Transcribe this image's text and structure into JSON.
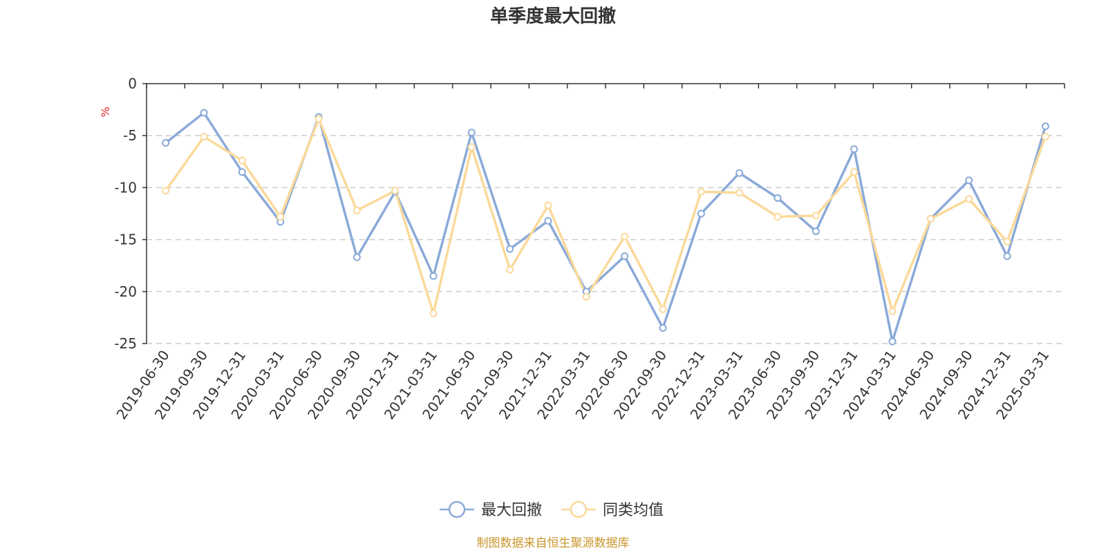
{
  "chart_data": {
    "type": "line",
    "title": "单季度最大回撤",
    "ylabel": "%",
    "ylim": [
      -25,
      0
    ],
    "yticks": [
      0,
      -5,
      -10,
      -15,
      -20,
      -25
    ],
    "grid": true,
    "legend_position": "bottom",
    "x": [
      "2019-06-30",
      "2019-09-30",
      "2019-12-31",
      "2020-03-31",
      "2020-06-30",
      "2020-09-30",
      "2020-12-31",
      "2021-03-31",
      "2021-06-30",
      "2021-09-30",
      "2021-12-31",
      "2022-03-31",
      "2022-06-30",
      "2022-09-30",
      "2022-12-31",
      "2023-03-31",
      "2023-06-30",
      "2023-09-30",
      "2023-12-31",
      "2024-03-31",
      "2024-06-30",
      "2024-09-30",
      "2024-12-31",
      "2025-03-31"
    ],
    "series": [
      {
        "name": "最大回撤",
        "color": "#8aaad8",
        "values": [
          -5.7,
          -2.8,
          -8.5,
          -13.3,
          -3.2,
          -16.7,
          -10.4,
          -18.5,
          -4.7,
          -15.9,
          -13.2,
          -20.0,
          -16.6,
          -23.5,
          -12.5,
          -8.6,
          -11.0,
          -14.2,
          -6.3,
          -24.8,
          -13.0,
          -9.3,
          -16.6,
          -4.1
        ]
      },
      {
        "name": "同类均值",
        "color": "#fbd99a",
        "values": [
          -10.3,
          -5.1,
          -7.4,
          -12.8,
          -3.4,
          -12.2,
          -10.3,
          -22.1,
          -6.1,
          -17.9,
          -11.7,
          -20.5,
          -14.7,
          -21.7,
          -10.4,
          -10.5,
          -12.8,
          -12.7,
          -8.5,
          -21.9,
          -13.0,
          -11.1,
          -15.2,
          -5.1
        ]
      }
    ]
  },
  "footer": {
    "source": "制图数据来自恒生聚源数据库"
  }
}
